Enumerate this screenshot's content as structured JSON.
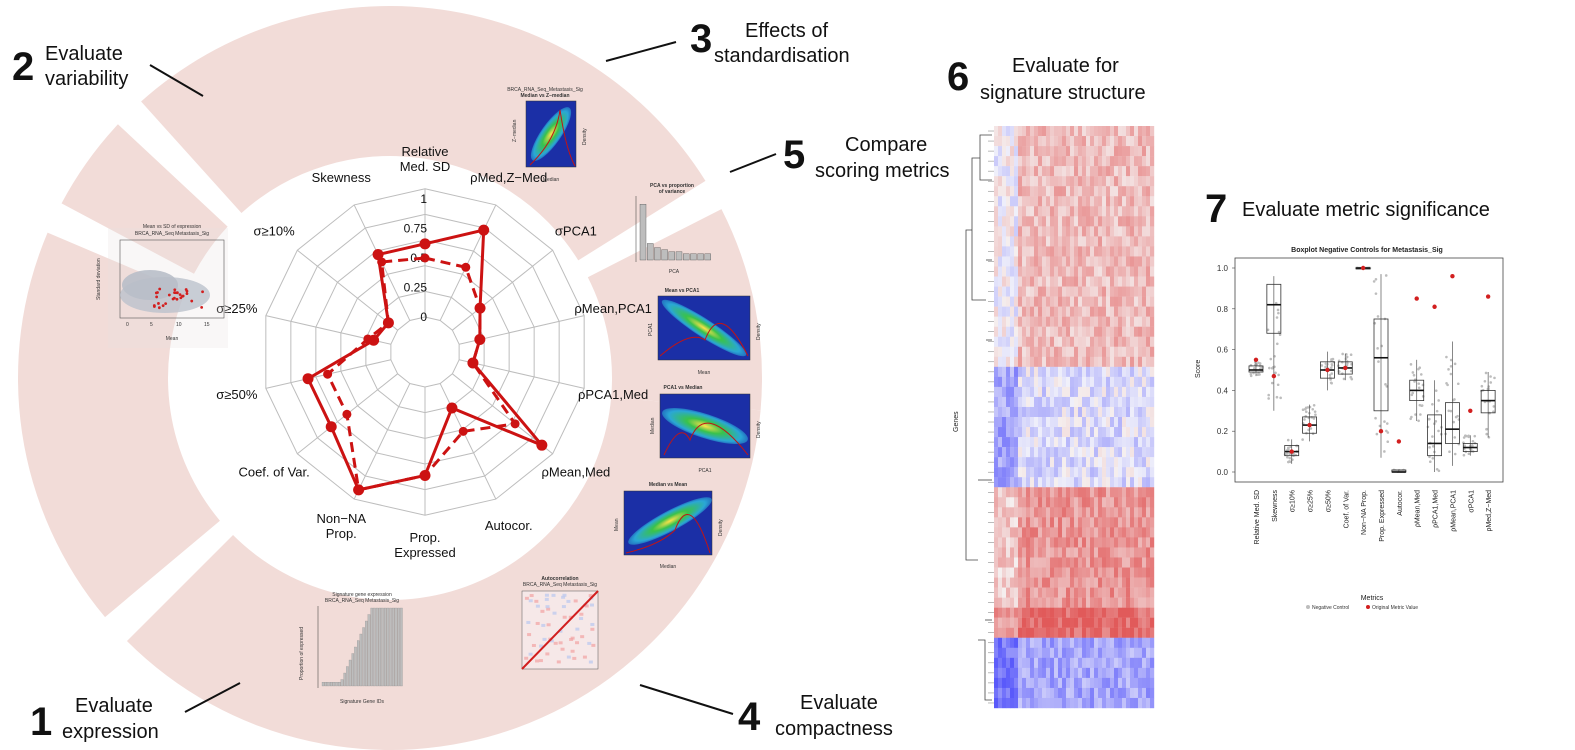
{
  "steps": [
    {
      "num": "1",
      "line1": "Evaluate",
      "line2": "expression"
    },
    {
      "num": "2",
      "line1": "Evaluate",
      "line2": "variability"
    },
    {
      "num": "3",
      "line1": "Effects of",
      "line2": "standardisation"
    },
    {
      "num": "4",
      "line1": "Evaluate",
      "line2": "compactness"
    },
    {
      "num": "5",
      "line1": "Compare",
      "line2": "scoring metrics"
    },
    {
      "num": "6",
      "line1": "Evaluate for",
      "line2": "signature structure"
    },
    {
      "num": "7",
      "line1": "Evaluate metric significance",
      "line2": ""
    }
  ],
  "radar": {
    "ticks": [
      "0",
      "0.25",
      "0.5",
      "0.75",
      "1"
    ],
    "axes": [
      {
        "name": "Relative Med. SD",
        "solid": 0.62,
        "dashed": 0.5
      },
      {
        "name": "ρMed,Z−Med",
        "solid": 0.85,
        "dashed": 0.5
      },
      {
        "name": "σPCA1",
        "solid": 0.3,
        "dashed": 0.3
      },
      {
        "name": "ρMean,PCA1",
        "solid": 0.18,
        "dashed": 0.18
      },
      {
        "name": "ρPCA1,Med",
        "solid": 0.12,
        "dashed": 0.12
      },
      {
        "name": "ρMean,Med",
        "solid": 0.97,
        "dashed": 0.68
      },
      {
        "name": "Autocor.",
        "solid": 0.23,
        "dashed": 0.45
      },
      {
        "name": "Prop. Expressed",
        "solid": 0.75,
        "dashed": 0.75
      },
      {
        "name": "Non−NA Prop.",
        "solid": 1.0,
        "dashed": 1.0
      },
      {
        "name": "Coef. of Var.",
        "solid": 0.72,
        "dashed": 0.55
      },
      {
        "name": "σ≥50%",
        "solid": 0.72,
        "dashed": 0.55
      },
      {
        "name": "σ≥25%",
        "solid": 0.15,
        "dashed": 0.2
      },
      {
        "name": "σ≥10%",
        "solid": 0.1,
        "dashed": 0.1
      },
      {
        "name": "Skewness",
        "solid": 0.62,
        "dashed": 0.55
      }
    ]
  },
  "panels": {
    "variability": {
      "title1": "Mean vs SD of expression",
      "title2": "BRCA_RNA_Seq Metastasis_Sig",
      "xlabel": "Mean",
      "ylabel": "Standard deviation",
      "xticks": [
        "0",
        "5",
        "10",
        "15"
      ],
      "yticks": [
        "0",
        "2",
        "4",
        "6",
        "8"
      ]
    },
    "standardisation": {
      "title1": "BRCA_RNA_Seq_Metastasis_Sig",
      "title2": "Median vs Z−median",
      "xlabel": "Median",
      "ylabel": "Z−median",
      "rlabel": "Density"
    },
    "pca": {
      "title1": "PCA vs proportion",
      "title2": "of variance",
      "xlabel": "PCA",
      "values": [
        0.27,
        0.08,
        0.06,
        0.05,
        0.04,
        0.04,
        0.03,
        0.03,
        0.03,
        0.03
      ]
    },
    "mean_pca1": {
      "title": "Mean vs PCA1",
      "xlabel": "Mean",
      "ylabel": "PCA1",
      "rlabel": "Density"
    },
    "pca1_median": {
      "title": "PCA1 vs Median",
      "xlabel": "PCA1",
      "ylabel": "Median",
      "rlabel": "Density"
    },
    "median_mean": {
      "title": "Median vs Mean",
      "xlabel": "Median",
      "ylabel": "Mean",
      "rlabel": "Density"
    },
    "autocor": {
      "title1": "Autocorrelation",
      "title2": "BRCA_RNA_Seq Metastasis_Sig"
    },
    "expression": {
      "title1": "Signature gene expression",
      "title2": "BRCA_RNA_Seq Metastasis_Sig",
      "xlabel": "Signature Gene IDs",
      "ylabel": "Proportion of expressed"
    }
  },
  "heatmap": {
    "ylabel": "Genes"
  },
  "boxplot": {
    "title": "Boxplot Negative Controls for Metastasis_Sig",
    "ylabel": "Score",
    "xlabel": "Metrics",
    "yticks": [
      "0.0",
      "0.2",
      "0.4",
      "0.6",
      "0.8",
      "1.0"
    ],
    "legend": [
      "Negative Control",
      "Original Metric Value"
    ],
    "colors": {
      "control": "#bdbdbd",
      "original": "#d21f1f"
    }
  },
  "chart_data": [
    {
      "type": "radar",
      "categories": [
        "Relative Med. SD",
        "ρMed,Z−Med",
        "σPCA1",
        "ρMean,PCA1",
        "ρPCA1,Med",
        "ρMean,Med",
        "Autocor.",
        "Prop. Expressed",
        "Non−NA Prop.",
        "Coef. of Var.",
        "σ≥50%",
        "σ≥25%",
        "σ≥10%",
        "Skewness"
      ],
      "series": [
        {
          "values": [
            0.62,
            0.85,
            0.3,
            0.18,
            0.12,
            0.97,
            0.23,
            0.75,
            1.0,
            0.72,
            0.72,
            0.15,
            0.1,
            0.62
          ]
        },
        {
          "values": [
            0.5,
            0.5,
            0.3,
            0.18,
            0.12,
            0.68,
            0.45,
            0.75,
            1.0,
            0.55,
            0.55,
            0.2,
            0.1,
            0.55
          ]
        }
      ],
      "ylim": [
        0,
        1
      ]
    },
    {
      "type": "box",
      "title": "Boxplot Negative Controls for Metastasis_Sig",
      "xlabel": "Metrics",
      "ylabel": "Score",
      "ylim": [
        0,
        1.0
      ],
      "categories": [
        "Relative Med. SD",
        "Skewness",
        "σ≥10%",
        "σ≥25%",
        "σ≥50%",
        "Coef. of Var.",
        "Non−NA Prop.",
        "Prop. Expressed",
        "Autocor.",
        "ρMean,Med",
        "ρPCA1,Med",
        "ρMean,PCA1",
        "σPCA1",
        "ρMed,Z−Med"
      ],
      "boxes": [
        {
          "q1": 0.49,
          "median": 0.5,
          "q3": 0.52,
          "lo": 0.47,
          "hi": 0.54
        },
        {
          "q1": 0.68,
          "median": 0.82,
          "q3": 0.92,
          "lo": 0.3,
          "hi": 0.96
        },
        {
          "q1": 0.08,
          "median": 0.1,
          "q3": 0.13,
          "lo": 0.04,
          "hi": 0.16
        },
        {
          "q1": 0.19,
          "median": 0.23,
          "q3": 0.27,
          "lo": 0.15,
          "hi": 0.33
        },
        {
          "q1": 0.46,
          "median": 0.5,
          "q3": 0.54,
          "lo": 0.4,
          "hi": 0.59
        },
        {
          "q1": 0.48,
          "median": 0.51,
          "q3": 0.54,
          "lo": 0.45,
          "hi": 0.58
        },
        {
          "q1": 1.0,
          "median": 1.0,
          "q3": 1.0,
          "lo": 1.0,
          "hi": 1.0
        },
        {
          "q1": 0.3,
          "median": 0.56,
          "q3": 0.75,
          "lo": 0.07,
          "hi": 0.97
        },
        {
          "q1": 0.0,
          "median": 0.0,
          "q3": 0.01,
          "lo": 0.0,
          "hi": 0.01
        },
        {
          "q1": 0.35,
          "median": 0.4,
          "q3": 0.45,
          "lo": 0.25,
          "hi": 0.55
        },
        {
          "q1": 0.08,
          "median": 0.14,
          "q3": 0.28,
          "lo": 0.0,
          "hi": 0.45
        },
        {
          "q1": 0.14,
          "median": 0.21,
          "q3": 0.34,
          "lo": 0.03,
          "hi": 0.64
        },
        {
          "q1": 0.1,
          "median": 0.12,
          "q3": 0.14,
          "lo": 0.08,
          "hi": 0.18
        },
        {
          "q1": 0.29,
          "median": 0.35,
          "q3": 0.4,
          "lo": 0.17,
          "hi": 0.49
        }
      ],
      "original": [
        0.55,
        0.47,
        0.1,
        0.23,
        0.5,
        0.51,
        1.0,
        0.2,
        0.15,
        0.85,
        0.81,
        0.96,
        0.3,
        0.86
      ]
    }
  ]
}
